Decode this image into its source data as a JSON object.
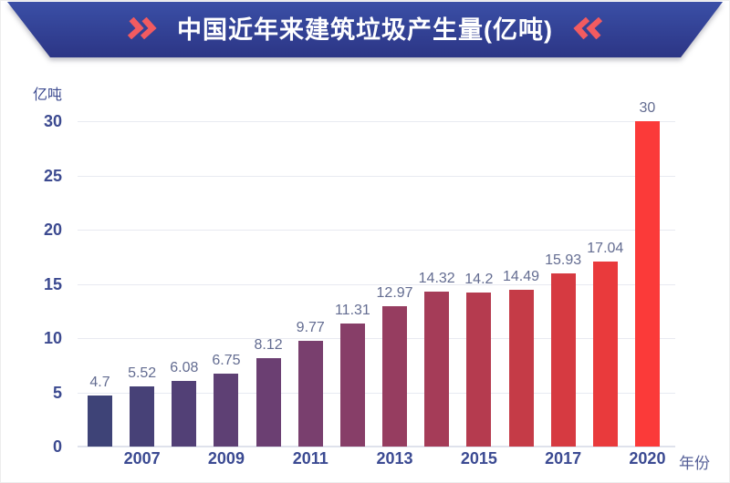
{
  "header": {
    "title": "中国近年来建筑垃圾产生量(亿吨)",
    "title_color": "#ffffff",
    "left_chevron_icon": "double-chevron-right",
    "right_chevron_icon": "double-chevron-left",
    "chevron_color": "#f25b60",
    "banner_color_top": "#3a4fa6",
    "banner_color_bottom": "#2c3585"
  },
  "chart_data": {
    "type": "bar",
    "title": "中国近年来建筑垃圾产生量(亿吨)",
    "ylabel": "亿吨",
    "xlabel": "年份",
    "ylim": [
      0,
      30
    ],
    "y_ticks": [
      0,
      5,
      10,
      15,
      20,
      25,
      30
    ],
    "grid": true,
    "values": [
      4.7,
      5.52,
      6.08,
      6.75,
      8.12,
      9.77,
      11.31,
      12.97,
      14.32,
      14.2,
      14.49,
      15.93,
      17.04,
      30
    ],
    "value_labels": [
      "4.7",
      "5.52",
      "6.08",
      "6.75",
      "8.12",
      "9.77",
      "11.31",
      "12.97",
      "14.32",
      "14.2",
      "14.49",
      "15.93",
      "17.04",
      "30"
    ],
    "x_ticks": [
      {
        "label": "2007",
        "bar_index": 1
      },
      {
        "label": "2009",
        "bar_index": 3
      },
      {
        "label": "2011",
        "bar_index": 5
      },
      {
        "label": "2013",
        "bar_index": 7
      },
      {
        "label": "2015",
        "bar_index": 9
      },
      {
        "label": "2017",
        "bar_index": 11
      },
      {
        "label": "2020",
        "bar_index": 13
      }
    ],
    "bar_colors": [
      "#3e4377",
      "#474177",
      "#524076",
      "#5e4074",
      "#6b3f72",
      "#793f6e",
      "#873e68",
      "#963d60",
      "#a53c58",
      "#b53b4f",
      "#c53b47",
      "#d63a41",
      "#e93a3c",
      "#fb3a39"
    ]
  },
  "colors": {
    "grid_line": "#e8eaf1",
    "axis_line": "#dfe2ec",
    "y_tick_label": "#3c4a90",
    "x_tick_label": "#3b4a92",
    "value_label": "#636c91",
    "unit_label": "#3f4d92",
    "xlabel_color": "#566098"
  }
}
